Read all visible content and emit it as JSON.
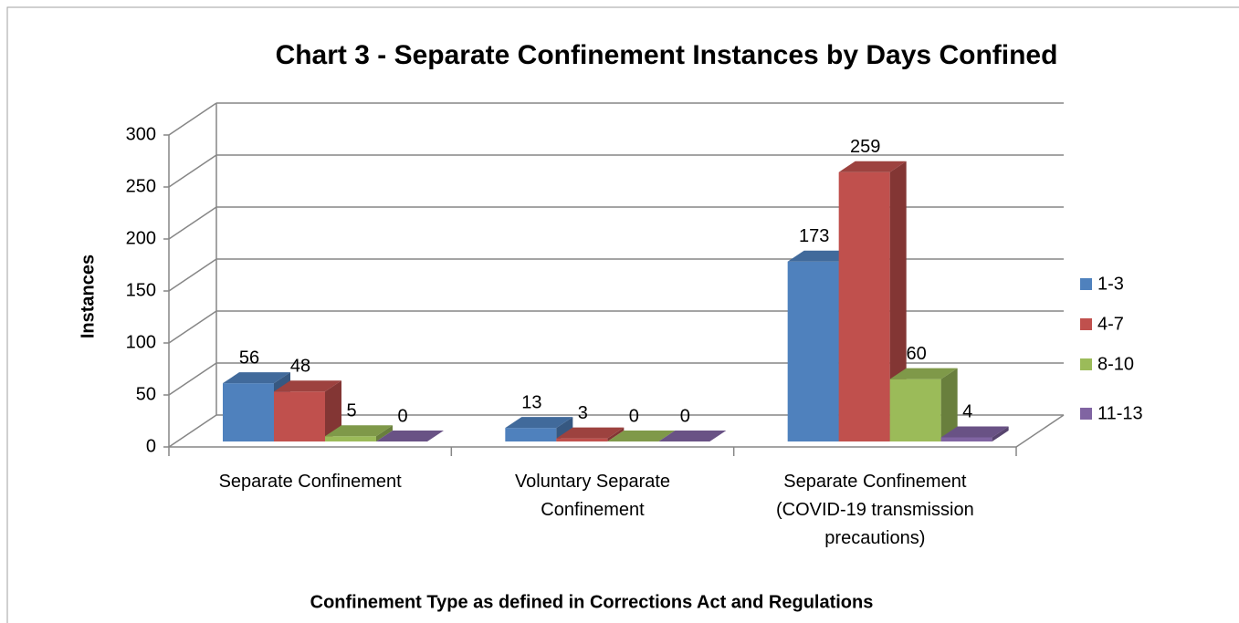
{
  "chart_data": {
    "type": "bar3d",
    "title": "Chart 3 - Separate Confinement Instances by Days Confined",
    "x_label": "Confinement Type as defined in Corrections Act and Regulations",
    "y_label": "Instances",
    "categories": [
      "Separate Confinement",
      "Voluntary Separate Confinement",
      "Separate Confinement (COVID-19 transmission precautions)"
    ],
    "series": [
      {
        "name": "1-3",
        "color": "#4f81bd",
        "values": [
          56,
          13,
          173
        ]
      },
      {
        "name": "4-7",
        "color": "#c0504d",
        "values": [
          48,
          3,
          259
        ]
      },
      {
        "name": "8-10",
        "color": "#9bbb59",
        "values": [
          5,
          0,
          60
        ]
      },
      {
        "name": "11-13",
        "color": "#8064a2",
        "values": [
          0,
          0,
          4
        ]
      }
    ],
    "ylim": [
      0,
      300
    ],
    "yticks": [
      0,
      50,
      100,
      150,
      200,
      250,
      300
    ],
    "grid": true,
    "legend": "right"
  }
}
